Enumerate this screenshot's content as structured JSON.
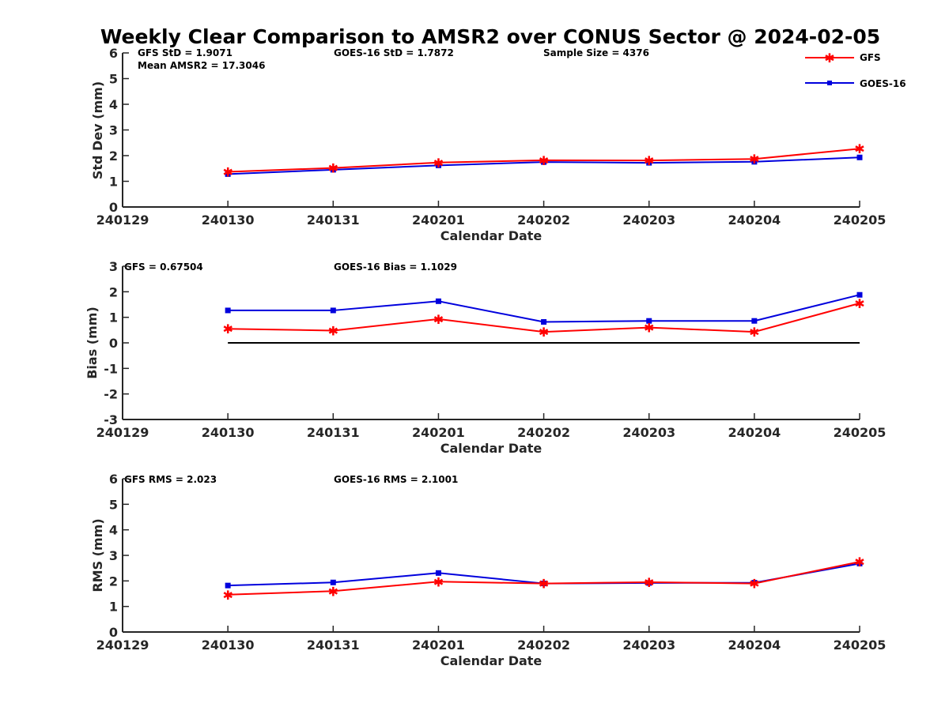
{
  "title": "Weekly Clear Comparison to AMSR2 over CONUS Sector @ 2024-02-05",
  "legend": [
    {
      "name": "GFS",
      "color": "#ff0000",
      "marker": "asterisk"
    },
    {
      "name": "GOES-16",
      "color": "#0000dd",
      "marker": "square"
    }
  ],
  "panels": [
    {
      "ylabel": "Std Dev (mm)",
      "xlabel": "Calendar Date",
      "stats": [
        "GFS StD = 1.9071",
        "Mean AMSR2 = 17.3046",
        "GOES-16 StD = 1.7872",
        "Sample Size = 4376"
      ]
    },
    {
      "ylabel": "Bias (mm)",
      "xlabel": "Calendar Date",
      "stats": [
        "GFS = 0.67504",
        "GOES-16 Bias  = 1.1029"
      ]
    },
    {
      "ylabel": "RMS (mm)",
      "xlabel": "Calendar Date",
      "stats": [
        "GFS RMS = 2.023",
        "GOES-16 RMS = 2.1001"
      ]
    }
  ],
  "chart_data": [
    {
      "type": "line",
      "categories": [
        "240129",
        "240130",
        "240131",
        "240201",
        "240202",
        "240203",
        "240204",
        "240205"
      ],
      "ylabel": "Std Dev (mm)",
      "xlabel": "Calendar Date",
      "ylim": [
        0,
        6
      ],
      "yticks": [
        0,
        1,
        2,
        3,
        4,
        5,
        6
      ],
      "series": [
        {
          "name": "GFS",
          "color": "#ff0000",
          "values": [
            null,
            1.37,
            1.52,
            1.73,
            1.82,
            1.81,
            1.87,
            2.27
          ]
        },
        {
          "name": "GOES-16",
          "color": "#0000dd",
          "values": [
            null,
            1.28,
            1.45,
            1.62,
            1.75,
            1.72,
            1.76,
            1.93
          ]
        }
      ]
    },
    {
      "type": "line",
      "categories": [
        "240129",
        "240130",
        "240131",
        "240201",
        "240202",
        "240203",
        "240204",
        "240205"
      ],
      "ylabel": "Bias (mm)",
      "xlabel": "Calendar Date",
      "ylim": [
        -3,
        3
      ],
      "yticks": [
        -3,
        -2,
        -1,
        0,
        1,
        2,
        3
      ],
      "zero_line": true,
      "series": [
        {
          "name": "GFS",
          "color": "#ff0000",
          "values": [
            null,
            0.55,
            0.48,
            0.93,
            0.43,
            0.6,
            0.43,
            1.55
          ]
        },
        {
          "name": "GOES-16",
          "color": "#0000dd",
          "values": [
            null,
            1.27,
            1.27,
            1.63,
            0.82,
            0.86,
            0.86,
            1.88
          ]
        }
      ]
    },
    {
      "type": "line",
      "categories": [
        "240129",
        "240130",
        "240131",
        "240201",
        "240202",
        "240203",
        "240204",
        "240205"
      ],
      "ylabel": "RMS (mm)",
      "xlabel": "Calendar Date",
      "ylim": [
        0,
        6
      ],
      "yticks": [
        0,
        1,
        2,
        3,
        4,
        5,
        6
      ],
      "series": [
        {
          "name": "GFS",
          "color": "#ff0000",
          "values": [
            null,
            1.46,
            1.6,
            1.97,
            1.9,
            1.95,
            1.9,
            2.75
          ]
        },
        {
          "name": "GOES-16",
          "color": "#0000dd",
          "values": [
            null,
            1.82,
            1.94,
            2.31,
            1.9,
            1.92,
            1.93,
            2.68
          ]
        }
      ]
    }
  ]
}
